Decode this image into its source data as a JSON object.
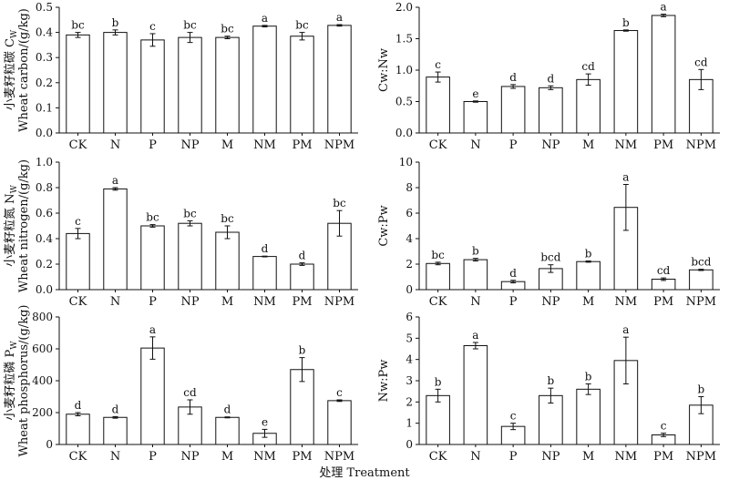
{
  "x_axis_title": "处理 Treatment",
  "chart_data": [
    {
      "id": "cw",
      "type": "bar",
      "ylabel_cn": "小麦籽粒碳 C",
      "ylabel_cn_sub": "W",
      "ylabel_en": "Wheat carbon/(g/kg)",
      "categories": [
        "CK",
        "N",
        "P",
        "NP",
        "M",
        "NM",
        "PM",
        "NPM"
      ],
      "values": [
        0.39,
        0.4,
        0.37,
        0.38,
        0.38,
        0.425,
        0.385,
        0.428
      ],
      "errors": [
        0.01,
        0.01,
        0.025,
        0.02,
        0.005,
        0.003,
        0.015,
        0.003
      ],
      "letters": [
        "bc",
        "b",
        "c",
        "bc",
        "bc",
        "a",
        "bc",
        "a"
      ],
      "ylim": [
        0,
        0.5
      ],
      "yticks": [
        "0.0",
        "0.1",
        "0.2",
        "0.3",
        "0.4",
        "0.5"
      ]
    },
    {
      "id": "cwnw",
      "type": "bar",
      "ylabel": "Cw:Nw",
      "categories": [
        "CK",
        "N",
        "P",
        "NP",
        "M",
        "NM",
        "PM",
        "NPM"
      ],
      "values": [
        0.89,
        0.5,
        0.74,
        0.72,
        0.85,
        1.63,
        1.87,
        0.85
      ],
      "errors": [
        0.08,
        0.01,
        0.03,
        0.03,
        0.09,
        0.01,
        0.02,
        0.16
      ],
      "letters": [
        "c",
        "e",
        "d",
        "d",
        "cd",
        "b",
        "a",
        "cd"
      ],
      "ylim": [
        0,
        2.0
      ],
      "yticks": [
        "0.0",
        "0.5",
        "1.0",
        "1.5",
        "2.0"
      ]
    },
    {
      "id": "nw",
      "type": "bar",
      "ylabel_cn": "小麦籽粒氮 N",
      "ylabel_cn_sub": "W",
      "ylabel_en": "Wheat nitrogen/(g/kg)",
      "categories": [
        "CK",
        "N",
        "P",
        "NP",
        "M",
        "NM",
        "PM",
        "NPM"
      ],
      "values": [
        0.44,
        0.79,
        0.5,
        0.52,
        0.45,
        0.26,
        0.2,
        0.52
      ],
      "errors": [
        0.04,
        0.01,
        0.01,
        0.02,
        0.05,
        0.003,
        0.01,
        0.1
      ],
      "letters": [
        "c",
        "a",
        "bc",
        "bc",
        "bc",
        "d",
        "d",
        "bc"
      ],
      "ylim": [
        0,
        1.0
      ],
      "yticks": [
        "0.0",
        "0.2",
        "0.4",
        "0.6",
        "0.8",
        "1.0"
      ]
    },
    {
      "id": "cwpw",
      "type": "bar",
      "ylabel": "Cw:Pw",
      "categories": [
        "CK",
        "N",
        "P",
        "NP",
        "M",
        "NM",
        "PM",
        "NPM"
      ],
      "values": [
        2.05,
        2.35,
        0.63,
        1.65,
        2.2,
        6.45,
        0.82,
        1.55
      ],
      "errors": [
        0.1,
        0.1,
        0.1,
        0.3,
        0.05,
        1.8,
        0.1,
        0.05
      ],
      "letters": [
        "bc",
        "b",
        "d",
        "bcd",
        "b",
        "a",
        "cd",
        "bcd"
      ],
      "ylim": [
        0,
        10
      ],
      "yticks": [
        "0",
        "2",
        "4",
        "6",
        "8",
        "10"
      ]
    },
    {
      "id": "pw",
      "type": "bar",
      "ylabel_cn": "小麦籽粒磷 P",
      "ylabel_cn_sub": "W",
      "ylabel_en": "Wheat phosphorus/(g/kg)",
      "categories": [
        "CK",
        "N",
        "P",
        "NP",
        "M",
        "NM",
        "PM",
        "NPM"
      ],
      "values": [
        190,
        170,
        605,
        235,
        170,
        70,
        470,
        275
      ],
      "errors": [
        10,
        5,
        70,
        45,
        3,
        25,
        75,
        5
      ],
      "letters": [
        "d",
        "d",
        "a",
        "cd",
        "d",
        "e",
        "b",
        "c"
      ],
      "ylim": [
        0,
        800
      ],
      "yticks": [
        "0",
        "200",
        "400",
        "600",
        "800"
      ]
    },
    {
      "id": "nwpw",
      "type": "bar",
      "ylabel": "Nw:Pw",
      "categories": [
        "CK",
        "N",
        "P",
        "NP",
        "M",
        "NM",
        "PM",
        "NPM"
      ],
      "values": [
        2.3,
        4.65,
        0.85,
        2.3,
        2.6,
        3.95,
        0.45,
        1.85
      ],
      "errors": [
        0.3,
        0.15,
        0.15,
        0.35,
        0.25,
        1.1,
        0.08,
        0.4
      ],
      "letters": [
        "b",
        "a",
        "c",
        "b",
        "b",
        "a",
        "c",
        "b"
      ],
      "ylim": [
        0,
        6
      ],
      "yticks": [
        "0",
        "1",
        "2",
        "3",
        "4",
        "5",
        "6"
      ]
    }
  ]
}
